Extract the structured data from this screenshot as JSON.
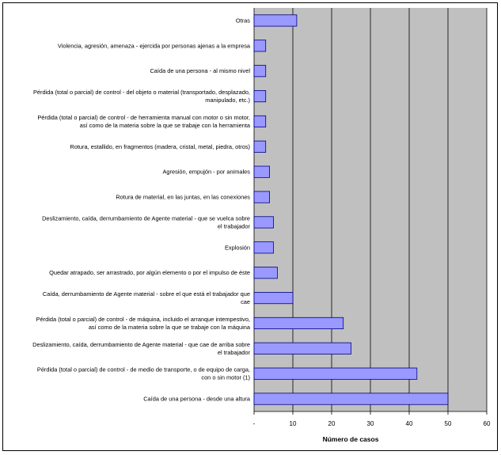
{
  "chart_data": {
    "type": "bar",
    "orientation": "horizontal",
    "categories": [
      [
        "Otras"
      ],
      [
        "Violencia, agresión, amenaza - ejercida por personas ajenas a la empresa"
      ],
      [
        "Caída de una persona - al mismo nivel"
      ],
      [
        "Pérdida (total o parcial) de control - del objeto o material (transportado, desplazado,",
        "manipulado, etc.)"
      ],
      [
        "Pérdida (total o parcial) de control - de herramienta manual con motor o sin motor,",
        "así como de la materia sobre la que se trabaje con la herramienta"
      ],
      [
        "Rotura, estallido, en fragmentos (madera, cristal, metal, piedra, otros)"
      ],
      [
        "Agresión, empujón - por animales"
      ],
      [
        "Rotura de material, en las juntas, en las conexiones"
      ],
      [
        "Deslizamiento, caída, derrumbamiento de Agente material - que se vuelca sobre",
        "el trabajador"
      ],
      [
        "Explosión"
      ],
      [
        "Quedar atrapado, ser arrastrado, por algún elemento o por el impulso de éste"
      ],
      [
        "Caída, derrumbamiento de Agente material - sobre el que está el trabajador que",
        "cae"
      ],
      [
        "Pérdida (total o parcial) de control - de máquina, incluido el arranque intempestivo,",
        "así como de la materia sobre la que se trabaje con la máquina"
      ],
      [
        "Deslizamiento, caída, derrumbamiento de Agente material - que cae de arriba sobre",
        "el trabajador"
      ],
      [
        "Pérdida (total o parcial) de control - de medio de transporte, o de equipo de carga,",
        "con o sin motor (1)"
      ],
      [
        "Caída de una persona - desde una altura"
      ]
    ],
    "values": [
      11,
      3,
      3,
      3,
      3,
      3,
      4,
      4,
      5,
      5,
      6,
      10,
      23,
      25,
      42,
      50
    ],
    "xlim": [
      0,
      60
    ],
    "xticks": [
      "-",
      "10",
      "20",
      "30",
      "40",
      "50",
      "60"
    ],
    "xlabel": "Número de casos",
    "grid": true,
    "colors": {
      "bar_fill": "#9999ff",
      "bar_stroke": "#000080",
      "plot_bg": "#c0c0c0",
      "grid": "#000000"
    }
  }
}
